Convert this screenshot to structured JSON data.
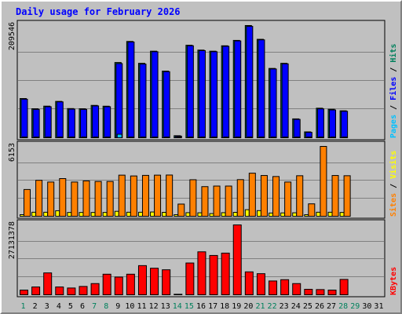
{
  "title": "Daily usage for February 2026",
  "chart_data": {
    "type": "bar",
    "title": "Daily usage for February 2026",
    "days": [
      1,
      2,
      3,
      4,
      5,
      6,
      7,
      8,
      9,
      10,
      11,
      12,
      13,
      14,
      15,
      16,
      17,
      18,
      19,
      20,
      21,
      22,
      23,
      24,
      25,
      26,
      27,
      28,
      29,
      30,
      31
    ],
    "weekend_days": [
      1,
      7,
      8,
      14,
      15,
      21,
      22,
      28,
      29
    ],
    "colors": {
      "hits": "#00805c",
      "files": "#0000ff",
      "pages": "#00c0ff",
      "visits": "#ffff00",
      "sites": "#ff8000",
      "kbytes": "#ff0000",
      "weekend": "#00805c",
      "weekday": "#000000",
      "title": "#0000ff"
    },
    "panels": [
      {
        "id": "hits_files_pages",
        "max_label": "209546",
        "max": 209546,
        "side_labels": [
          "Pages",
          "Files",
          "Hits"
        ],
        "series": [
          {
            "name": "Hits",
            "values": [
              74200,
              55300,
              60100,
              68900,
              55600,
              55300,
              61500,
              60000,
              141000,
              180000,
              139500,
              162000,
              125000,
              5300,
              173000,
              164000,
              162000,
              172000,
              182000,
              209546,
              184000,
              130000,
              139500,
              36500,
              12400,
              56300,
              54300,
              51500,
              0,
              0,
              0
            ]
          },
          {
            "name": "Files",
            "values": [
              73000,
              54000,
              59000,
              68000,
              54500,
              54000,
              60500,
              59000,
              139000,
              179000,
              138000,
              161000,
              124000,
              4500,
              172000,
              163000,
              161000,
              171000,
              181000,
              208000,
              183000,
              129000,
              138500,
              35500,
              11500,
              55000,
              53000,
              50500,
              0,
              0,
              0
            ]
          },
          {
            "name": "Pages",
            "values": [
              1500,
              1300,
              1600,
              1800,
              1400,
              1300,
              1700,
              1600,
              8000,
              2600,
              2000,
              2000,
              1500,
              400,
              2300,
              2000,
              1800,
              2100,
              2300,
              2600,
              2000,
              1700,
              1600,
              600,
              300,
              1000,
              1000,
              900,
              0,
              0,
              0
            ]
          }
        ]
      },
      {
        "id": "visits_sites",
        "max_label": "6153",
        "max": 6153,
        "side_labels": [
          "Sites",
          "/",
          "Visits"
        ],
        "series": [
          {
            "name": "Visits",
            "values": [
              200,
              420,
              420,
              550,
              400,
              400,
              400,
              400,
              500,
              420,
              420,
              440,
              410,
              80,
              380,
              370,
              300,
              380,
              410,
              640,
              560,
              350,
              360,
              370,
              200,
              420,
              420,
              400,
              0,
              0,
              0
            ]
          },
          {
            "name": "Sites",
            "values": [
              2400,
              3200,
              3050,
              3350,
              3050,
              3150,
              3100,
              3100,
              3650,
              3580,
              3630,
              3650,
              3660,
              1130,
              3250,
              2650,
              2700,
              2700,
              3260,
              3820,
              3620,
              3530,
              3050,
              3600,
              1150,
              6153,
              3620,
              3600,
              0,
              0,
              0
            ]
          }
        ]
      },
      {
        "id": "kbytes",
        "max_label": "27131378",
        "max": 27131378,
        "side_labels": [
          "KBytes"
        ],
        "series": [
          {
            "name": "KBytes",
            "values": [
              2100000,
              3300000,
              8700000,
              3300000,
              2900000,
              3500000,
              4600000,
              8200000,
              7100000,
              8200000,
              11500000,
              10500000,
              9900000,
              500000,
              12500000,
              16800000,
              15400000,
              16300000,
              27131378,
              9100000,
              8400000,
              5600000,
              6100000,
              4600000,
              2400000,
              2300000,
              2100000,
              6200000,
              0,
              0,
              0
            ]
          }
        ]
      }
    ]
  }
}
